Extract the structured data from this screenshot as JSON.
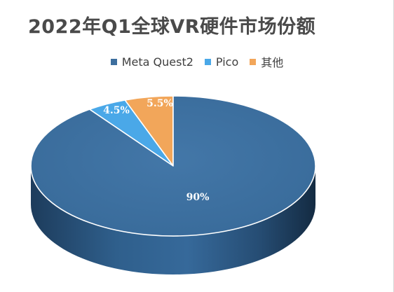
{
  "chart_data": {
    "type": "pie",
    "title": "2022年Q1全球VR硬件市场份额",
    "categories": [
      "Meta Quest2",
      "Pico",
      "其他"
    ],
    "values": [
      90,
      4.5,
      5.5
    ],
    "labels": [
      "90%",
      "4.5%",
      "5.5%"
    ],
    "colors": [
      "#3d6e9e",
      "#4aa8e8",
      "#f2a65a"
    ],
    "legend": "top",
    "style": "3d"
  }
}
